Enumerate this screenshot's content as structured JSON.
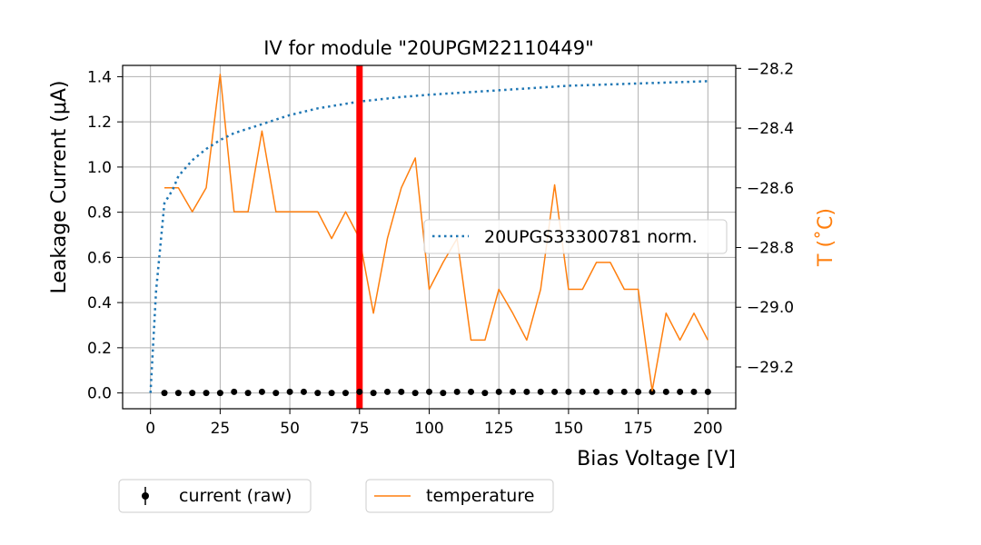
{
  "chart_data": {
    "type": "line",
    "title": "IV for module \"20UPGM22110449\"",
    "xlabel": "Bias Voltage [V]",
    "ylabel": "Leakage Current (μA)",
    "y2label": "T (˚C)",
    "xlim": [
      -10,
      210
    ],
    "ylim": [
      -0.07,
      1.45
    ],
    "y2lim": [
      -29.34,
      -28.19
    ],
    "xticks": [
      0,
      25,
      50,
      75,
      100,
      125,
      150,
      175,
      200
    ],
    "yticks": [
      0.0,
      0.2,
      0.4,
      0.6,
      0.8,
      1.0,
      1.2,
      1.4
    ],
    "y2ticks": [
      -29.2,
      -29.0,
      -28.8,
      -28.6,
      -28.4,
      -28.2
    ],
    "xtick_labels": [
      "0",
      "25",
      "50",
      "75",
      "100",
      "125",
      "150",
      "175",
      "200"
    ],
    "ytick_labels": [
      "0.0",
      "0.2",
      "0.4",
      "0.6",
      "0.8",
      "1.0",
      "1.2",
      "1.4"
    ],
    "y2tick_labels": [
      "−29.2",
      "−29.0",
      "−28.8",
      "−28.6",
      "−28.4",
      "−28.2"
    ],
    "grid": true,
    "vline": {
      "x": 75,
      "color": "#ff0000"
    },
    "colors": {
      "current": "#000000",
      "temperature": "#ff7f0e",
      "reference": "#1f77b4",
      "vline": "#ff0000",
      "grid": "#b0b0b0"
    },
    "series": [
      {
        "name": "current (raw)",
        "axis": "left",
        "style": "markers",
        "x": [
          5,
          10,
          15,
          20,
          25,
          30,
          35,
          40,
          45,
          50,
          55,
          60,
          65,
          70,
          75,
          80,
          85,
          90,
          95,
          100,
          105,
          110,
          115,
          120,
          125,
          130,
          135,
          140,
          145,
          150,
          155,
          160,
          165,
          170,
          175,
          180,
          185,
          190,
          195,
          200
        ],
        "values": [
          0.0,
          0.0,
          0.0,
          0.0,
          0.0,
          0.005,
          0.0,
          0.005,
          0.0,
          0.005,
          0.005,
          0.0,
          0.0,
          0.0,
          0.005,
          0.0,
          0.005,
          0.005,
          0.0,
          0.005,
          0.0,
          0.005,
          0.005,
          0.0,
          0.005,
          0.005,
          0.005,
          0.005,
          0.005,
          0.005,
          0.005,
          0.005,
          0.005,
          0.005,
          0.005,
          0.005,
          0.005,
          0.005,
          0.005,
          0.005
        ]
      },
      {
        "name": "temperature",
        "axis": "right",
        "style": "line",
        "x": [
          5,
          10,
          15,
          20,
          25,
          30,
          35,
          40,
          45,
          50,
          55,
          60,
          65,
          70,
          75,
          80,
          85,
          90,
          95,
          100,
          105,
          110,
          115,
          120,
          125,
          130,
          135,
          140,
          145,
          150,
          155,
          160,
          165,
          170,
          175,
          180,
          185,
          190,
          195,
          200
        ],
        "values": [
          -28.6,
          -28.6,
          -28.68,
          -28.6,
          -28.22,
          -28.68,
          -28.68,
          -28.41,
          -28.68,
          -28.68,
          -28.68,
          -28.68,
          -28.77,
          -28.68,
          -28.77,
          -29.02,
          -28.77,
          -28.6,
          -28.5,
          -28.94,
          -28.85,
          -28.77,
          -29.11,
          -29.11,
          -28.94,
          -29.02,
          -29.11,
          -28.94,
          -28.59,
          -28.94,
          -28.94,
          -28.85,
          -28.85,
          -28.94,
          -28.94,
          -29.28,
          -29.02,
          -29.11,
          -29.02,
          -29.11
        ]
      },
      {
        "name": "20UPGS33300781 norm.",
        "axis": "left",
        "style": "dotted",
        "x": [
          0,
          2,
          5,
          8,
          10,
          15,
          20,
          25,
          30,
          40,
          50,
          60,
          75,
          90,
          100,
          125,
          150,
          175,
          200
        ],
        "values": [
          0.0,
          0.45,
          0.84,
          0.9,
          0.96,
          1.03,
          1.08,
          1.12,
          1.15,
          1.19,
          1.23,
          1.26,
          1.29,
          1.31,
          1.32,
          1.34,
          1.36,
          1.37,
          1.38
        ]
      }
    ]
  },
  "legend": {
    "inside_label": "20UPGS33300781 norm.",
    "bottom_left_label": "current (raw)",
    "bottom_right_label": "temperature"
  }
}
